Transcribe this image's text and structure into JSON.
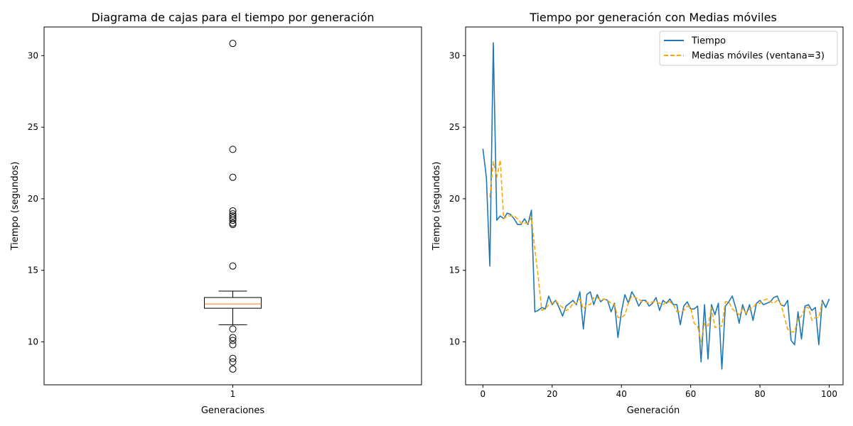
{
  "chart_data": [
    {
      "type": "box",
      "title": "Diagrama de cajas para el tiempo por generación",
      "xlabel": "Generaciones",
      "ylabel": "Tiempo (segundos)",
      "categories": [
        "1"
      ],
      "ylim": [
        7.0,
        32.0
      ],
      "yticks": [
        10,
        15,
        20,
        25,
        30
      ],
      "box": {
        "whisker_low": 11.2,
        "q1": 12.35,
        "median": 12.65,
        "q3": 13.1,
        "whisker_high": 13.55
      },
      "outliers": [
        30.85,
        23.45,
        21.5,
        19.15,
        18.95,
        18.8,
        18.65,
        18.5,
        18.3,
        18.2,
        15.3,
        10.9,
        10.3,
        10.1,
        9.8,
        8.85,
        8.6,
        8.1
      ],
      "grid": false,
      "colors": {
        "box": "#000000",
        "median": "#ff7f0e"
      }
    },
    {
      "type": "line",
      "title": "Tiempo por generación con Medias móviles",
      "xlabel": "Generación",
      "ylabel": "Tiempo (segundos)",
      "xlim": [
        -5,
        104
      ],
      "ylim": [
        7.0,
        32.0
      ],
      "xticks": [
        0,
        20,
        40,
        60,
        80,
        100
      ],
      "yticks": [
        10,
        15,
        20,
        25,
        30
      ],
      "legend_position": "top-right",
      "grid": false,
      "series": [
        {
          "name": "Tiempo",
          "color": "#1f77b4",
          "dashed": false,
          "x_start": 0,
          "values": [
            23.5,
            21.5,
            15.3,
            30.9,
            18.5,
            18.8,
            18.6,
            19.0,
            18.9,
            18.6,
            18.2,
            18.2,
            18.6,
            18.2,
            19.2,
            12.1,
            12.2,
            12.4,
            12.3,
            13.2,
            12.6,
            12.9,
            12.4,
            11.8,
            12.5,
            12.7,
            12.9,
            12.6,
            13.5,
            10.9,
            13.3,
            13.5,
            12.6,
            13.3,
            12.8,
            13.0,
            12.9,
            12.1,
            12.7,
            10.3,
            12.1,
            13.3,
            12.7,
            13.5,
            13.1,
            12.5,
            12.9,
            12.9,
            12.5,
            12.7,
            13.1,
            12.2,
            12.9,
            12.7,
            13.0,
            12.6,
            12.6,
            11.2,
            12.5,
            12.8,
            12.3,
            12.3,
            12.5,
            8.6,
            12.6,
            8.8,
            12.6,
            11.9,
            12.7,
            8.1,
            12.5,
            12.8,
            13.2,
            12.4,
            11.3,
            12.6,
            11.9,
            12.6,
            11.5,
            12.7,
            12.9,
            12.6,
            12.7,
            12.8,
            13.1,
            13.2,
            12.6,
            12.5,
            12.9,
            10.1,
            9.8,
            12.1,
            10.2,
            12.5,
            12.6,
            12.2,
            12.4,
            9.8,
            12.9,
            12.4,
            13.0
          ]
        },
        {
          "name": "Medias móviles (ventana=3)",
          "color": "#ffa500",
          "dashed": true,
          "x_start": 2,
          "values": [
            20.1,
            22.6,
            21.5,
            22.7,
            18.6,
            18.8,
            18.8,
            18.8,
            18.6,
            18.3,
            18.3,
            18.3,
            18.7,
            16.5,
            14.5,
            12.2,
            12.3,
            12.6,
            12.7,
            12.9,
            12.6,
            12.4,
            12.2,
            12.3,
            12.7,
            12.7,
            13.0,
            12.3,
            12.6,
            12.6,
            13.1,
            13.1,
            12.9,
            13.0,
            12.9,
            12.7,
            12.6,
            11.7,
            11.7,
            11.9,
            12.7,
            13.2,
            13.1,
            13.0,
            12.8,
            12.8,
            12.7,
            12.8,
            12.8,
            12.7,
            12.6,
            12.8,
            12.8,
            12.6,
            12.1,
            12.1,
            12.2,
            12.5,
            12.4,
            11.3,
            11.1,
            10.0,
            11.3,
            11.1,
            12.4,
            11.0,
            11.1,
            11.1,
            12.8,
            12.8,
            12.3,
            12.1,
            11.9,
            12.3,
            12.0,
            12.3,
            12.4,
            12.7,
            12.7,
            12.9,
            13.0,
            12.8,
            12.7,
            12.9,
            12.7,
            11.8,
            10.9,
            10.7,
            10.7,
            11.6,
            11.8,
            12.4,
            12.4,
            11.5,
            11.7,
            11.7,
            12.8
          ]
        }
      ]
    }
  ]
}
